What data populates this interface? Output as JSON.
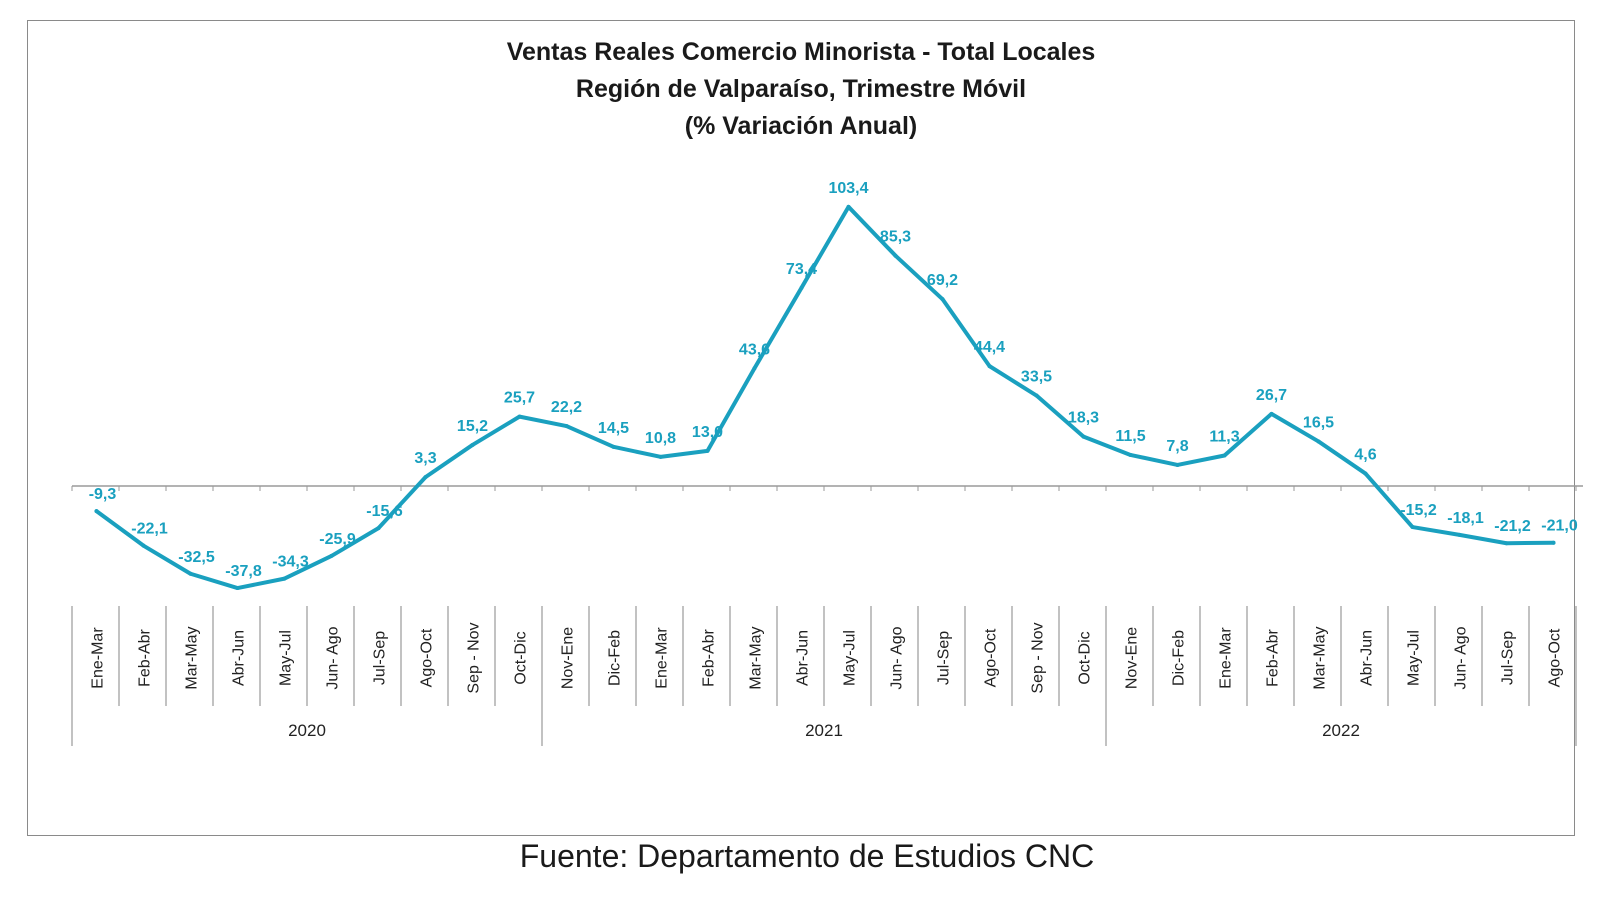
{
  "chart_data": {
    "type": "line",
    "title": "Ventas Reales Comercio Minorista - Total Locales",
    "subtitle": "Región de Valparaíso, Trimestre Móvil",
    "subtitle2": "(% Variación Anual)",
    "categories": [
      "Ene-Mar",
      "Feb-Abr",
      "Mar-May",
      "Abr-Jun",
      "May-Jul",
      "Jun- Ago",
      "Jul-Sep",
      "Ago-Oct",
      "Sep - Nov",
      "Oct-Dic",
      "Nov-Ene",
      "Dic-Feb",
      "Ene-Mar",
      "Feb-Abr",
      "Mar-May",
      "Abr-Jun",
      "May-Jul",
      "Jun- Ago",
      "Jul-Sep",
      "Ago-Oct",
      "Sep - Nov",
      "Oct-Dic",
      "Nov-Ene",
      "Dic-Feb",
      "Ene-Mar",
      "Feb-Abr",
      "Mar-May",
      "Abr-Jun",
      "May-Jul",
      "Jun- Ago",
      "Jul-Sep",
      "Ago-Oct"
    ],
    "years": [
      {
        "label": "2020",
        "start": 0,
        "end": 9
      },
      {
        "label": "2021",
        "start": 10,
        "end": 21
      },
      {
        "label": "2022",
        "start": 22,
        "end": 31
      }
    ],
    "values": [
      -9.3,
      -22.1,
      -32.5,
      -37.8,
      -34.3,
      -25.9,
      -15.6,
      3.3,
      15.2,
      25.7,
      22.2,
      14.5,
      10.8,
      13.0,
      43.6,
      73.4,
      103.4,
      85.3,
      69.2,
      44.4,
      33.5,
      18.3,
      11.5,
      7.8,
      11.3,
      26.7,
      16.5,
      4.6,
      -15.2,
      -18.1,
      -21.2,
      -21.0
    ],
    "data_labels": [
      "-9,3",
      "-22,1",
      "-32,5",
      "-37,8",
      "-34,3",
      "-25,9",
      "-15,6",
      "3,3",
      "15,2",
      "25,7",
      "22,2",
      "14,5",
      "10,8",
      "13,0",
      "43,6",
      "73,4",
      "103,4",
      "85,3",
      "69,2",
      "44,4",
      "33,5",
      "18,3",
      "11,5",
      "7,8",
      "11,3",
      "26,7",
      "16,5",
      "4,6",
      "-15,2",
      "-18,1",
      "-21,2",
      "-21,0"
    ],
    "ylim": [
      -45,
      112
    ],
    "grid": false,
    "legend": "none",
    "line_color": "#1aa0bf",
    "axis_color": "#9a9a9a"
  },
  "source": "Fuente: Departamento de Estudios CNC"
}
